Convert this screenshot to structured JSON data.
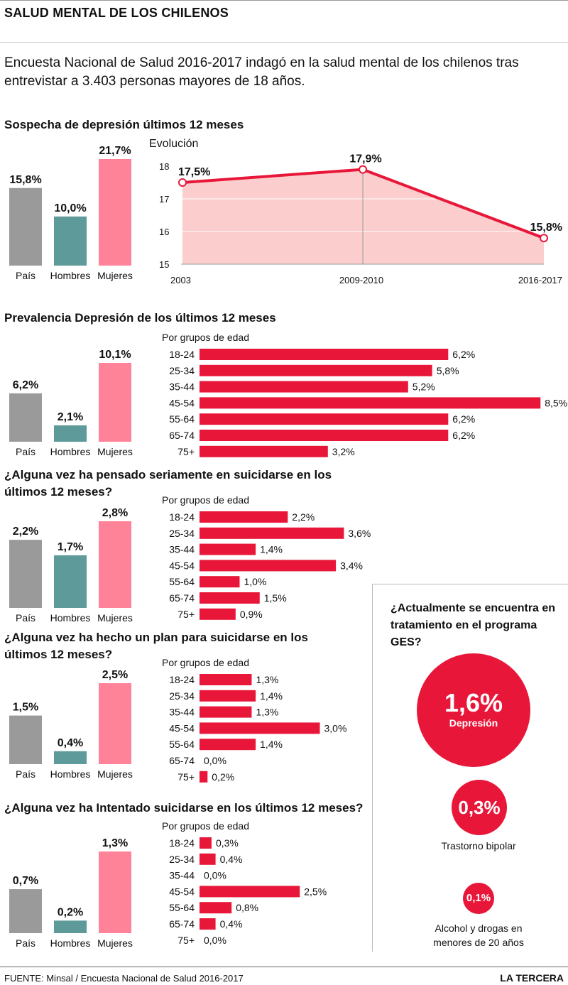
{
  "title": "SALUD MENTAL DE LOS CHILENOS",
  "intro": "Encuesta Nacional de Salud 2016-2017 indagó en la salud mental de los chilenos tras entrevistar a 3.403 personas mayores de 18 años.",
  "colors": {
    "pais": "#9a9a9a",
    "hombres": "#5e9a99",
    "mujeres": "#ff8398",
    "age_bar": "#e8173a",
    "line": "#e8173a",
    "area": "#fbcdcd"
  },
  "sections": [
    {
      "title": "Sospecha de depresión últimos 12 meses"
    },
    {
      "title": "Prevalencia Depresión de los últimos 12 meses"
    },
    {
      "title": "¿Alguna vez ha pensado seriamente en suicidarse en los últimos 12 meses?"
    },
    {
      "title": "¿Alguna vez ha hecho un plan para suicidarse en los últimos 12 meses?"
    },
    {
      "title": "¿Alguna vez ha Intentado suicidarse en los últimos 12 meses?"
    }
  ],
  "evolution_label": "Evolución",
  "age_group_label": "Por grupos de edad",
  "chart_data": [
    {
      "type": "bar",
      "title": "Sospecha de depresión últimos 12 meses",
      "categories": [
        "País",
        "Hombres",
        "Mujeres"
      ],
      "values": [
        15.8,
        10.0,
        21.7
      ],
      "labels": [
        "15,8%",
        "10,0%",
        "21,7%"
      ]
    },
    {
      "type": "line",
      "title": "Evolución",
      "x": [
        "2003",
        "2009-2010",
        "2016-2017"
      ],
      "values": [
        17.5,
        17.9,
        15.8
      ],
      "labels": [
        "17,5%",
        "17,9%",
        "15,8%"
      ],
      "ylim": [
        15,
        18
      ],
      "yticks": [
        "15",
        "16",
        "17",
        "18"
      ]
    },
    {
      "type": "bar",
      "title": "Prevalencia Depresión de los últimos 12 meses",
      "categories": [
        "País",
        "Hombres",
        "Mujeres"
      ],
      "values": [
        6.2,
        2.1,
        10.1
      ],
      "labels": [
        "6,2%",
        "2,1%",
        "10,1%"
      ]
    },
    {
      "type": "bar",
      "orientation": "horizontal",
      "title": "Por grupos de edad",
      "categories": [
        "18-24",
        "25-34",
        "35-44",
        "45-54",
        "55-64",
        "65-74",
        "75+"
      ],
      "values": [
        6.2,
        5.8,
        5.2,
        8.5,
        6.2,
        6.2,
        3.2
      ],
      "labels": [
        "6,2%",
        "5,8%",
        "5,2%",
        "8,5%",
        "6,2%",
        "6,2%",
        "3,2%"
      ]
    },
    {
      "type": "bar",
      "title": "¿Alguna vez ha pensado seriamente en suicidarse en los últimos 12 meses?",
      "categories": [
        "País",
        "Hombres",
        "Mujeres"
      ],
      "values": [
        2.2,
        1.7,
        2.8
      ],
      "labels": [
        "2,2%",
        "1,7%",
        "2,8%"
      ]
    },
    {
      "type": "bar",
      "orientation": "horizontal",
      "title": "Por grupos de edad",
      "categories": [
        "18-24",
        "25-34",
        "35-44",
        "45-54",
        "55-64",
        "65-74",
        "75+"
      ],
      "values": [
        2.2,
        3.6,
        1.4,
        3.4,
        1.0,
        1.5,
        0.9
      ],
      "labels": [
        "2,2%",
        "3,6%",
        "1,4%",
        "3,4%",
        "1,0%",
        "1,5%",
        "0,9%"
      ]
    },
    {
      "type": "bar",
      "title": "¿Alguna vez ha hecho un plan para suicidarse en los últimos 12 meses?",
      "categories": [
        "País",
        "Hombres",
        "Mujeres"
      ],
      "values": [
        1.5,
        0.4,
        2.5
      ],
      "labels": [
        "1,5%",
        "0,4%",
        "2,5%"
      ]
    },
    {
      "type": "bar",
      "orientation": "horizontal",
      "title": "Por grupos de edad",
      "categories": [
        "18-24",
        "25-34",
        "35-44",
        "45-54",
        "55-64",
        "65-74",
        "75+"
      ],
      "values": [
        1.3,
        1.4,
        1.3,
        3.0,
        1.4,
        0.0,
        0.2
      ],
      "labels": [
        "1,3%",
        "1,4%",
        "1,3%",
        "3,0%",
        "1,4%",
        "0,0%",
        "0,2%"
      ]
    },
    {
      "type": "bar",
      "title": "¿Alguna vez ha Intentado suicidarse en los últimos 12 meses?",
      "categories": [
        "País",
        "Hombres",
        "Mujeres"
      ],
      "values": [
        0.7,
        0.2,
        1.3
      ],
      "labels": [
        "0,7%",
        "0,2%",
        "1,3%"
      ]
    },
    {
      "type": "bar",
      "orientation": "horizontal",
      "title": "Por grupos de edad",
      "categories": [
        "18-24",
        "25-34",
        "35-44",
        "45-54",
        "55-64",
        "65-74",
        "75+"
      ],
      "values": [
        0.3,
        0.4,
        0.0,
        2.5,
        0.8,
        0.4,
        0.0
      ],
      "labels": [
        "0,3%",
        "0,4%",
        "0,0%",
        "2,5%",
        "0,8%",
        "0,4%",
        "0,0%"
      ]
    }
  ],
  "ges": {
    "question": "¿Actualmente se encuentra en tratamiento en el programa GES?",
    "items": [
      {
        "value": "1,6%",
        "label": "Depresión"
      },
      {
        "value": "0,3%",
        "label": "Trastorno bipolar"
      },
      {
        "value": "0,1%",
        "label": "Alcohol y drogas en menores de 20 años"
      }
    ]
  },
  "source": "FUENTE: Minsal / Encuesta Nacional de Salud 2016-2017",
  "brand": "LA TERCERA"
}
